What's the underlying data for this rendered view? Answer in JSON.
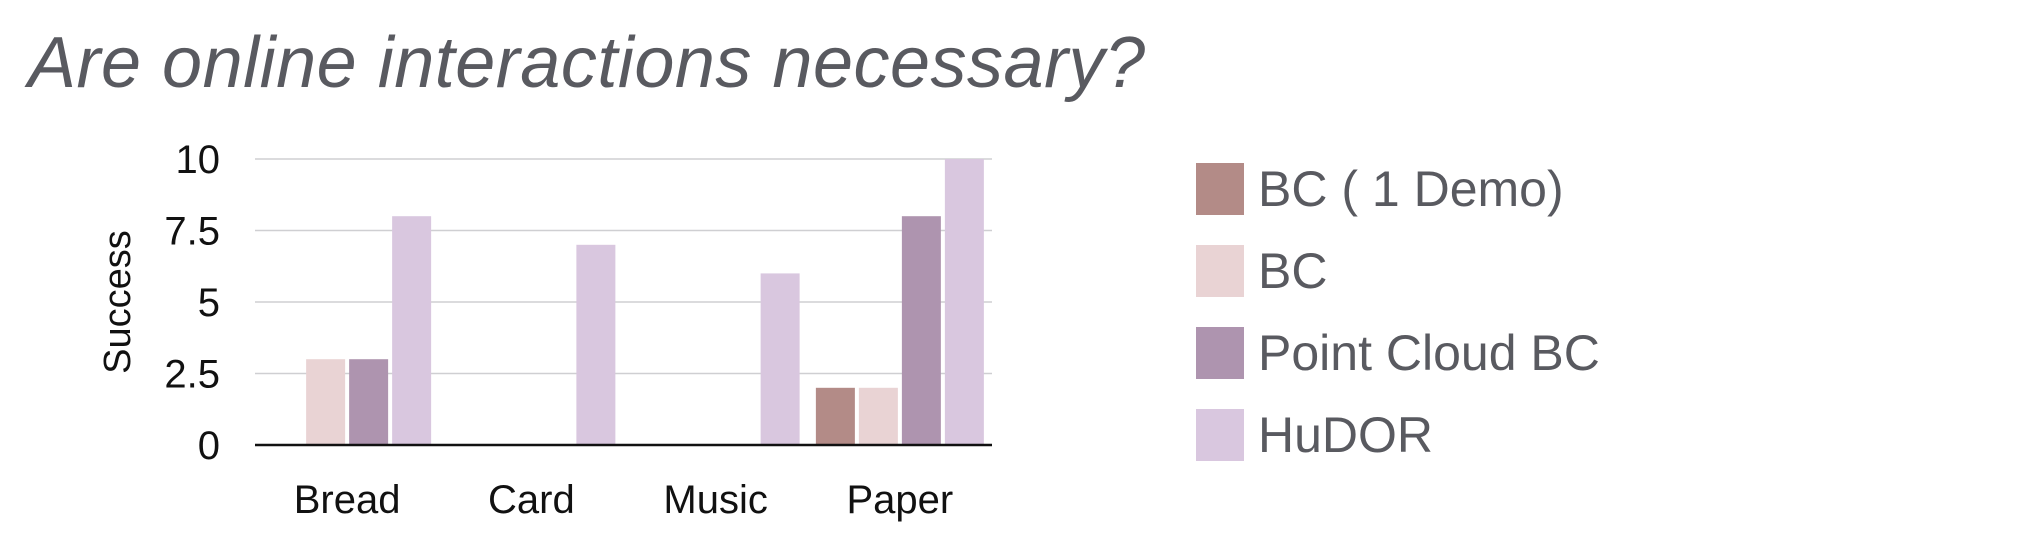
{
  "title": "Are online interactions necessary?",
  "chart_data": {
    "type": "bar",
    "categories": [
      "Bread",
      "Card",
      "Music",
      "Paper"
    ],
    "series": [
      {
        "name": "BC ( 1 Demo)",
        "color": "#b38b87",
        "values": [
          0,
          0,
          0,
          2
        ]
      },
      {
        "name": "BC",
        "color": "#e9d3d4",
        "values": [
          3,
          0,
          0,
          2
        ]
      },
      {
        "name": "Point Cloud BC",
        "color": "#ae94af",
        "values": [
          3,
          0,
          0,
          8
        ]
      },
      {
        "name": "HuDOR",
        "color": "#d9c7df",
        "values": [
          8,
          7,
          6,
          10
        ]
      }
    ],
    "ylabel": "Success",
    "xlabel": "",
    "ylim": [
      0,
      10
    ],
    "yticks": [
      0,
      2.5,
      5,
      7.5,
      10
    ],
    "ytick_labels": [
      "0",
      "2.5",
      "5",
      "7.5",
      "10"
    ],
    "grid": true,
    "legend": "right"
  }
}
